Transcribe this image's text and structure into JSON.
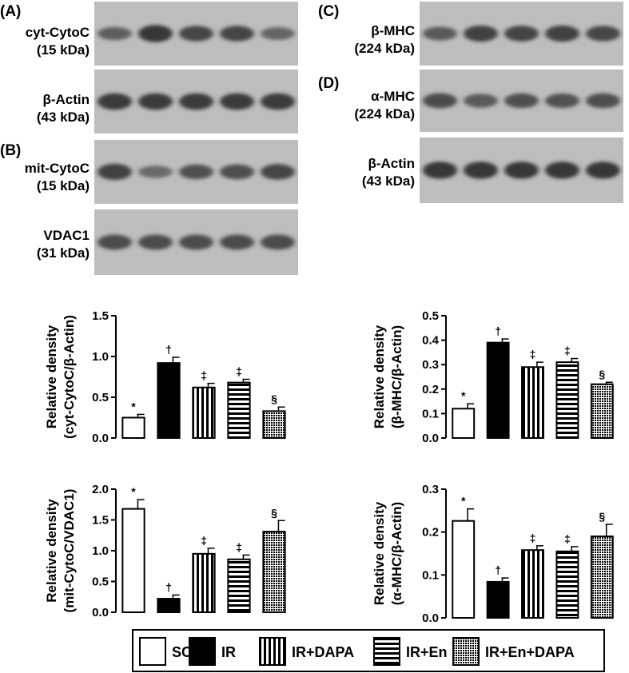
{
  "panels": {
    "A": "(A)",
    "B": "(B)",
    "C": "(C)",
    "D": "(D)"
  },
  "blots": [
    {
      "id": "cyt-cytoc",
      "label1": "cyt-CytoC",
      "label2": "(15 kDa)",
      "intensities": [
        0.55,
        0.95,
        0.8,
        0.8,
        0.5
      ]
    },
    {
      "id": "beta-actin-a",
      "label1": "β-Actin",
      "label2": "(43 kDa)",
      "intensities": [
        0.9,
        0.9,
        0.9,
        0.9,
        0.9
      ]
    },
    {
      "id": "mit-cytoc",
      "label1": "mit-CytoC",
      "label2": "(15 kDa)",
      "intensities": [
        0.85,
        0.45,
        0.7,
        0.72,
        0.8
      ]
    },
    {
      "id": "vdac1",
      "label1": "VDAC1",
      "label2": "(31 kDa)",
      "intensities": [
        0.75,
        0.75,
        0.75,
        0.75,
        0.75
      ]
    },
    {
      "id": "beta-mhc",
      "label1": "β-MHC",
      "label2": "(224 kDa)",
      "intensities": [
        0.6,
        0.85,
        0.82,
        0.85,
        0.78
      ]
    },
    {
      "id": "alpha-mhc",
      "label1": "α-MHC",
      "label2": "(224 kDa)",
      "intensities": [
        0.75,
        0.6,
        0.7,
        0.68,
        0.72
      ]
    },
    {
      "id": "beta-actin-d",
      "label1": "β-Actin",
      "label2": "(43 kDa)",
      "intensities": [
        0.95,
        0.95,
        0.95,
        0.95,
        0.95
      ]
    }
  ],
  "chart_data": [
    {
      "type": "bar",
      "id": "cyt",
      "ylabel_line1": "Relative density",
      "ylabel_line2": "(cyt-CytoC/β-Actin)",
      "categories": [
        "SC",
        "IR",
        "IR+DAPA",
        "IR+En",
        "IR+En+DAPA"
      ],
      "values": [
        0.25,
        0.92,
        0.62,
        0.68,
        0.33
      ],
      "errors": [
        0.04,
        0.07,
        0.05,
        0.04,
        0.05
      ],
      "annotations": [
        "*",
        "†",
        "‡",
        "‡",
        "§"
      ],
      "ylim": [
        0,
        1.5
      ],
      "yticks": [
        "0.0",
        "0.5",
        "1.0",
        "1.5"
      ],
      "ytick_values": [
        0,
        0.5,
        1.0,
        1.5
      ]
    },
    {
      "type": "bar",
      "id": "mit",
      "ylabel_line1": "Relative density",
      "ylabel_line2": "(mit-CytoC/VDAC1)",
      "categories": [
        "SC",
        "IR",
        "IR+DAPA",
        "IR+En",
        "IR+En+DAPA"
      ],
      "values": [
        1.68,
        0.22,
        0.95,
        0.86,
        1.31
      ],
      "errors": [
        0.15,
        0.06,
        0.09,
        0.07,
        0.18
      ],
      "annotations": [
        "*",
        "†",
        "‡",
        "‡",
        "§"
      ],
      "ylim": [
        0,
        2.0
      ],
      "yticks": [
        "0.0",
        "0.5",
        "1.0",
        "1.5",
        "2.0"
      ],
      "ytick_values": [
        0,
        0.5,
        1.0,
        1.5,
        2.0
      ]
    },
    {
      "type": "bar",
      "id": "bmhc",
      "ylabel_line1": "Relative density",
      "ylabel_line2": "(β-MHC/β-Actin)",
      "categories": [
        "SC",
        "IR",
        "IR+DAPA",
        "IR+En",
        "IR+En+DAPA"
      ],
      "values": [
        0.12,
        0.39,
        0.29,
        0.31,
        0.22
      ],
      "errors": [
        0.02,
        0.015,
        0.02,
        0.015,
        0.008
      ],
      "annotations": [
        "*",
        "†",
        "‡",
        "‡",
        "§"
      ],
      "ylim": [
        0,
        0.5
      ],
      "yticks": [
        "0.0",
        "0.1",
        "0.2",
        "0.3",
        "0.4",
        "0.5"
      ],
      "ytick_values": [
        0,
        0.1,
        0.2,
        0.3,
        0.4,
        0.5
      ]
    },
    {
      "type": "bar",
      "id": "amhc",
      "ylabel_line1": "Relative density",
      "ylabel_line2": "(α-MHC/β-Actin)",
      "categories": [
        "SC",
        "IR",
        "IR+DAPA",
        "IR+En",
        "IR+En+DAPA"
      ],
      "values": [
        0.226,
        0.084,
        0.158,
        0.155,
        0.19
      ],
      "errors": [
        0.028,
        0.009,
        0.01,
        0.011,
        0.028
      ],
      "annotations": [
        "*",
        "†",
        "‡",
        "‡",
        "§"
      ],
      "ylim": [
        0,
        0.3
      ],
      "yticks": [
        "0.0",
        "0.1",
        "0.2",
        "0.3"
      ],
      "ytick_values": [
        0,
        0.1,
        0.2,
        0.3
      ]
    }
  ],
  "legend": [
    {
      "label": "SC",
      "fill": "white"
    },
    {
      "label": "IR",
      "fill": "black"
    },
    {
      "label": "IR+DAPA",
      "fill": "vstripes"
    },
    {
      "label": "IR+En",
      "fill": "hstripes"
    },
    {
      "label": "IR+En+DAPA",
      "fill": "checker"
    }
  ],
  "colors": {
    "bar_edge": "#000000",
    "blot_bg": "#bdbdbd",
    "band": "#2a2a2a"
  }
}
